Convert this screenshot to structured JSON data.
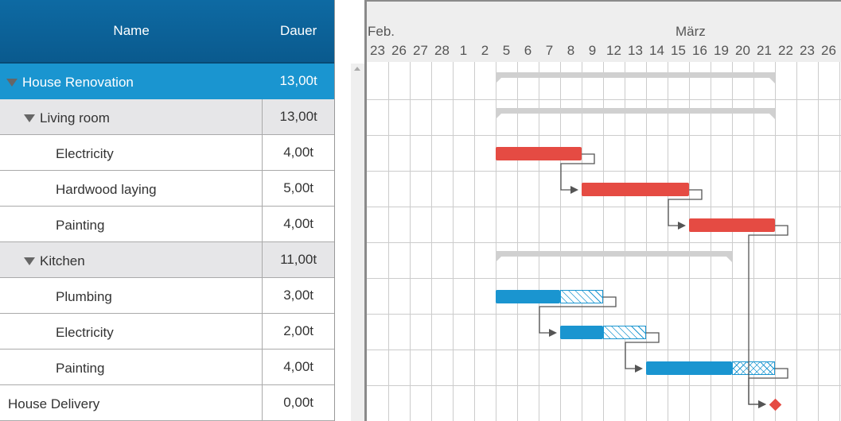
{
  "grid": {
    "columns": {
      "name": "Name",
      "duration": "Dauer"
    },
    "rows": [
      {
        "name": "House Renovation",
        "duration": "13,00t",
        "level": 0,
        "summary": true,
        "selected": true,
        "expanded": true
      },
      {
        "name": "Living room",
        "duration": "13,00t",
        "level": 1,
        "summary": true,
        "expanded": true
      },
      {
        "name": "Electricity",
        "duration": "4,00t",
        "level": 2
      },
      {
        "name": "Hardwood laying",
        "duration": "5,00t",
        "level": 2
      },
      {
        "name": "Painting",
        "duration": "4,00t",
        "level": 2
      },
      {
        "name": "Kitchen",
        "duration": "11,00t",
        "level": 1,
        "summary": true,
        "expanded": true
      },
      {
        "name": "Plumbing",
        "duration": "3,00t",
        "level": 2
      },
      {
        "name": "Electricity",
        "duration": "2,00t",
        "level": 2
      },
      {
        "name": "Painting",
        "duration": "4,00t",
        "level": 2
      },
      {
        "name": "House Delivery",
        "duration": "0,00t",
        "level": 1,
        "milestone": true
      }
    ]
  },
  "timeline": {
    "months": [
      {
        "label": "Feb.",
        "first_day_index": 0
      },
      {
        "label": "März",
        "first_day_index": 14
      }
    ],
    "days": [
      "23",
      "26",
      "27",
      "28",
      "1",
      "2",
      "5",
      "6",
      "7",
      "8",
      "9",
      "12",
      "13",
      "14",
      "15",
      "16",
      "19",
      "20",
      "21",
      "22",
      "23",
      "26"
    ]
  },
  "gantt": {
    "bars": [
      {
        "row": 0,
        "type": "summary",
        "start": "5",
        "end": "21"
      },
      {
        "row": 1,
        "type": "summary",
        "start": "5",
        "end": "21"
      },
      {
        "row": 2,
        "type": "task",
        "color": "#e54b43",
        "start": "5",
        "end": "8"
      },
      {
        "row": 3,
        "type": "task",
        "color": "#e54b43",
        "start": "9",
        "end": "15"
      },
      {
        "row": 4,
        "type": "task",
        "color": "#e54b43",
        "start": "16",
        "end": "21"
      },
      {
        "row": 5,
        "type": "summary",
        "start": "5",
        "end": "19"
      },
      {
        "row": 6,
        "type": "task",
        "color": "#1a95d0",
        "start": "5",
        "end": "9",
        "filled_until": "7",
        "pattern": "hatch"
      },
      {
        "row": 7,
        "type": "task",
        "color": "#1a95d0",
        "start": "8",
        "end": "13",
        "filled_until": "9",
        "pattern": "hatch"
      },
      {
        "row": 8,
        "type": "task",
        "color": "#1a95d0",
        "start": "14",
        "end": "21",
        "filled_until": "19",
        "pattern": "cross"
      },
      {
        "row": 9,
        "type": "milestone",
        "color": "#e54b43",
        "at": "21"
      }
    ],
    "links": [
      [
        2,
        3
      ],
      [
        3,
        4
      ],
      [
        6,
        7
      ],
      [
        7,
        8
      ],
      [
        4,
        9
      ],
      [
        8,
        9
      ]
    ]
  }
}
